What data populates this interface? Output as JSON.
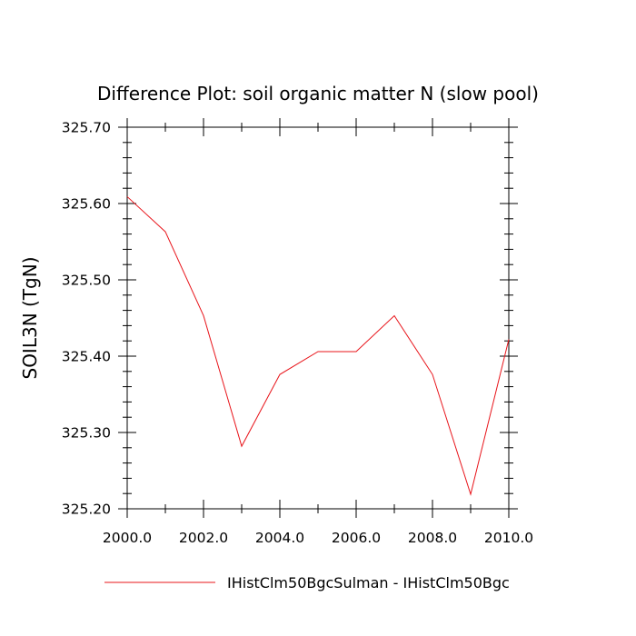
{
  "chart_data": {
    "type": "line",
    "title": "Difference Plot: soil organic matter N (slow pool)",
    "xlabel": "",
    "ylabel": "SOIL3N  (TgN)",
    "xlim": [
      2000,
      2010
    ],
    "ylim": [
      325.2,
      325.7
    ],
    "x_ticks": [
      2000,
      2002,
      2004,
      2006,
      2008,
      2010
    ],
    "x_tick_labels": [
      "2000.0",
      "2002.0",
      "2004.0",
      "2006.0",
      "2008.0",
      "2010.0"
    ],
    "y_ticks": [
      325.2,
      325.3,
      325.4,
      325.5,
      325.6,
      325.7
    ],
    "y_tick_labels": [
      "325.20",
      "325.30",
      "325.40",
      "325.50",
      "325.60",
      "325.70"
    ],
    "grid": false,
    "legend_position": "bottom",
    "colors": {
      "series": "#e8141a",
      "axis": "#000000"
    },
    "series": [
      {
        "name": "IHistClm50BgcSulman - IHistClm50Bgc",
        "x": [
          2000,
          2001,
          2002,
          2003,
          2004,
          2005,
          2006,
          2007,
          2008,
          2009,
          2010
        ],
        "values": [
          325.609,
          325.563,
          325.453,
          325.282,
          325.376,
          325.406,
          325.406,
          325.453,
          325.376,
          325.219,
          325.422
        ]
      }
    ]
  }
}
